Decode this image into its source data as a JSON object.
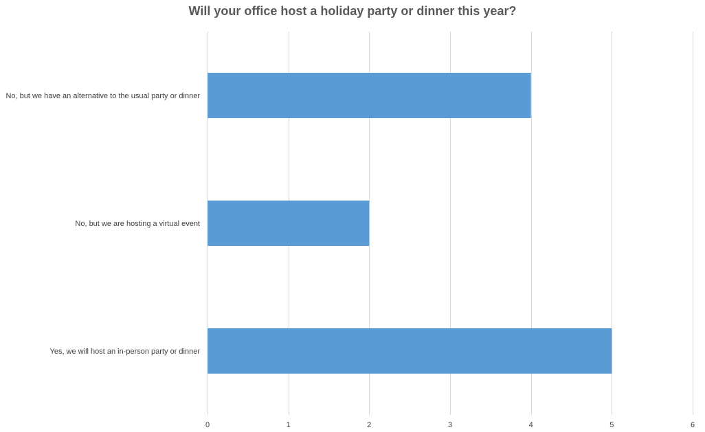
{
  "chart_data": {
    "type": "bar",
    "orientation": "horizontal",
    "title": "Will your office host a holiday party or dinner this year?",
    "xlabel": "",
    "ylabel": "",
    "categories": [
      "No, but we have an alternative to the usual party or dinner",
      "No, but we are hosting a virtual event",
      "Yes, we will host an in-person party or dinner"
    ],
    "values": [
      4,
      2,
      5
    ],
    "xlim": [
      0,
      6
    ],
    "xticks": [
      "0",
      "1",
      "2",
      "3",
      "4",
      "5",
      "6"
    ],
    "grid": true,
    "legend": "none",
    "bar_color": "#5b9bd5"
  }
}
